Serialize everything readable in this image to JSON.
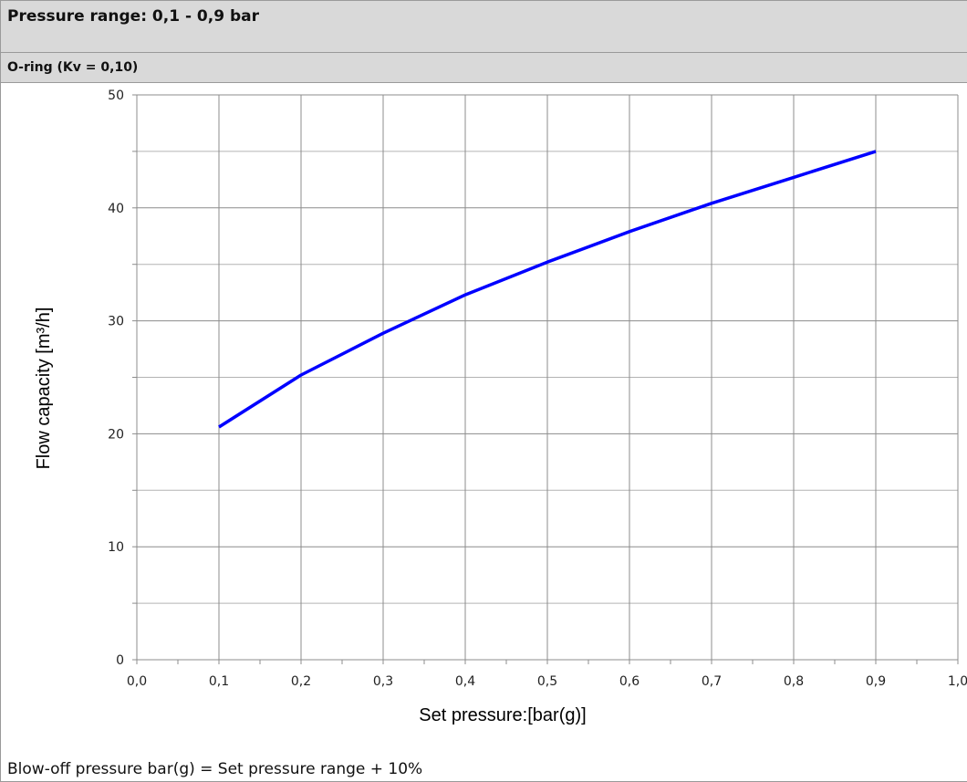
{
  "header": {
    "title": "Pressure range: 0,1 - 0,9 bar",
    "subtitle": "O-ring (Kv = 0,10)"
  },
  "chart_data": {
    "type": "line",
    "xlabel": "Set pressure:[bar(g)]",
    "ylabel": "Flow capacity [m³/h]",
    "xlim": [
      0,
      1.0
    ],
    "ylim": [
      0,
      50
    ],
    "x_ticks": [
      "0,0",
      "0,1",
      "0,2",
      "0,3",
      "0,4",
      "0,5",
      "0,6",
      "0,7",
      "0,8",
      "0,9",
      "1,0"
    ],
    "y_ticks": [
      "0",
      "10",
      "20",
      "30",
      "40",
      "50"
    ],
    "grid": true,
    "series": [
      {
        "color": "#0000ff",
        "x": [
          0.1,
          0.2,
          0.3,
          0.4,
          0.5,
          0.6,
          0.7,
          0.8,
          0.9
        ],
        "y": [
          20.6,
          25.2,
          28.9,
          32.3,
          35.2,
          37.9,
          40.4,
          42.7,
          45.0
        ]
      }
    ]
  },
  "footer": {
    "note": "Blow-off pressure bar(g) = Set pressure range + 10%"
  }
}
